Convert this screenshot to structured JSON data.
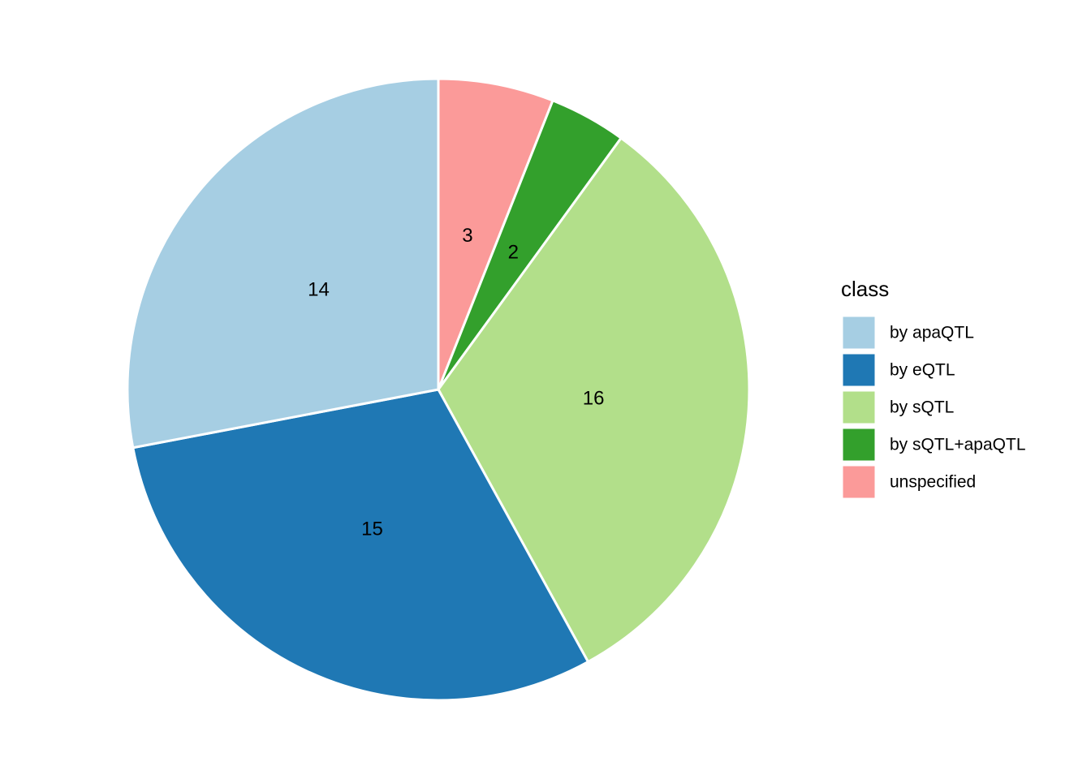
{
  "chart_data": {
    "type": "pie",
    "legend_title": "class",
    "categories": [
      "by apaQTL",
      "by eQTL",
      "by sQTL",
      "by sQTL+apaQTL",
      "unspecified"
    ],
    "values": [
      14,
      15,
      16,
      2,
      3
    ],
    "colors": [
      "#a6cee3",
      "#1f78b4",
      "#b2df8a",
      "#33a02c",
      "#fb9a99"
    ],
    "legend_position": "right"
  }
}
